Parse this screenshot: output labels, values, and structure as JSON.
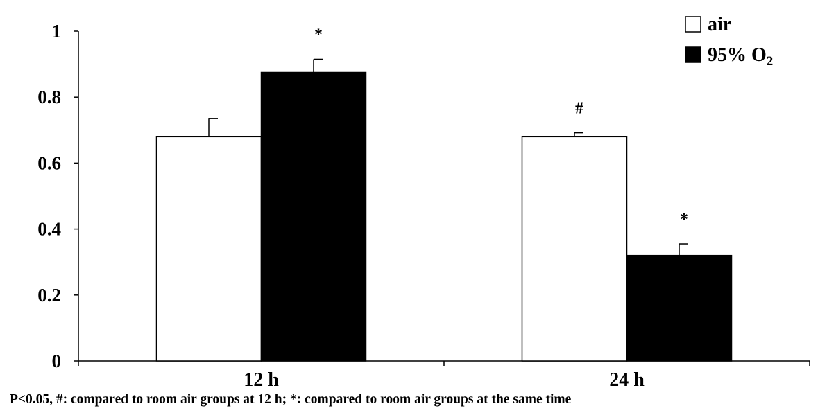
{
  "chart_data": {
    "type": "bar",
    "categories": [
      "12 h",
      "24 h"
    ],
    "series": [
      {
        "name": "air",
        "values": [
          0.68,
          0.68
        ],
        "errors": [
          0.055,
          0.012
        ],
        "color": "#ffffff",
        "stroke": "#000000",
        "marks": [
          "",
          "#"
        ]
      },
      {
        "name": "95% O",
        "name_sub": "2",
        "values": [
          0.875,
          0.32
        ],
        "errors": [
          0.04,
          0.035
        ],
        "color": "#000000",
        "stroke": "#000000",
        "marks": [
          "*",
          "*"
        ]
      }
    ],
    "yticks": [
      "0",
      "0.2",
      "0.4",
      "0.6",
      "0.8",
      "1"
    ],
    "ylim": [
      0,
      1
    ],
    "grid": false,
    "legend_position": "top-right",
    "footnote": "P<0.05, #: compared to room air groups at 12 h;  *: compared to room air groups at the same time"
  }
}
